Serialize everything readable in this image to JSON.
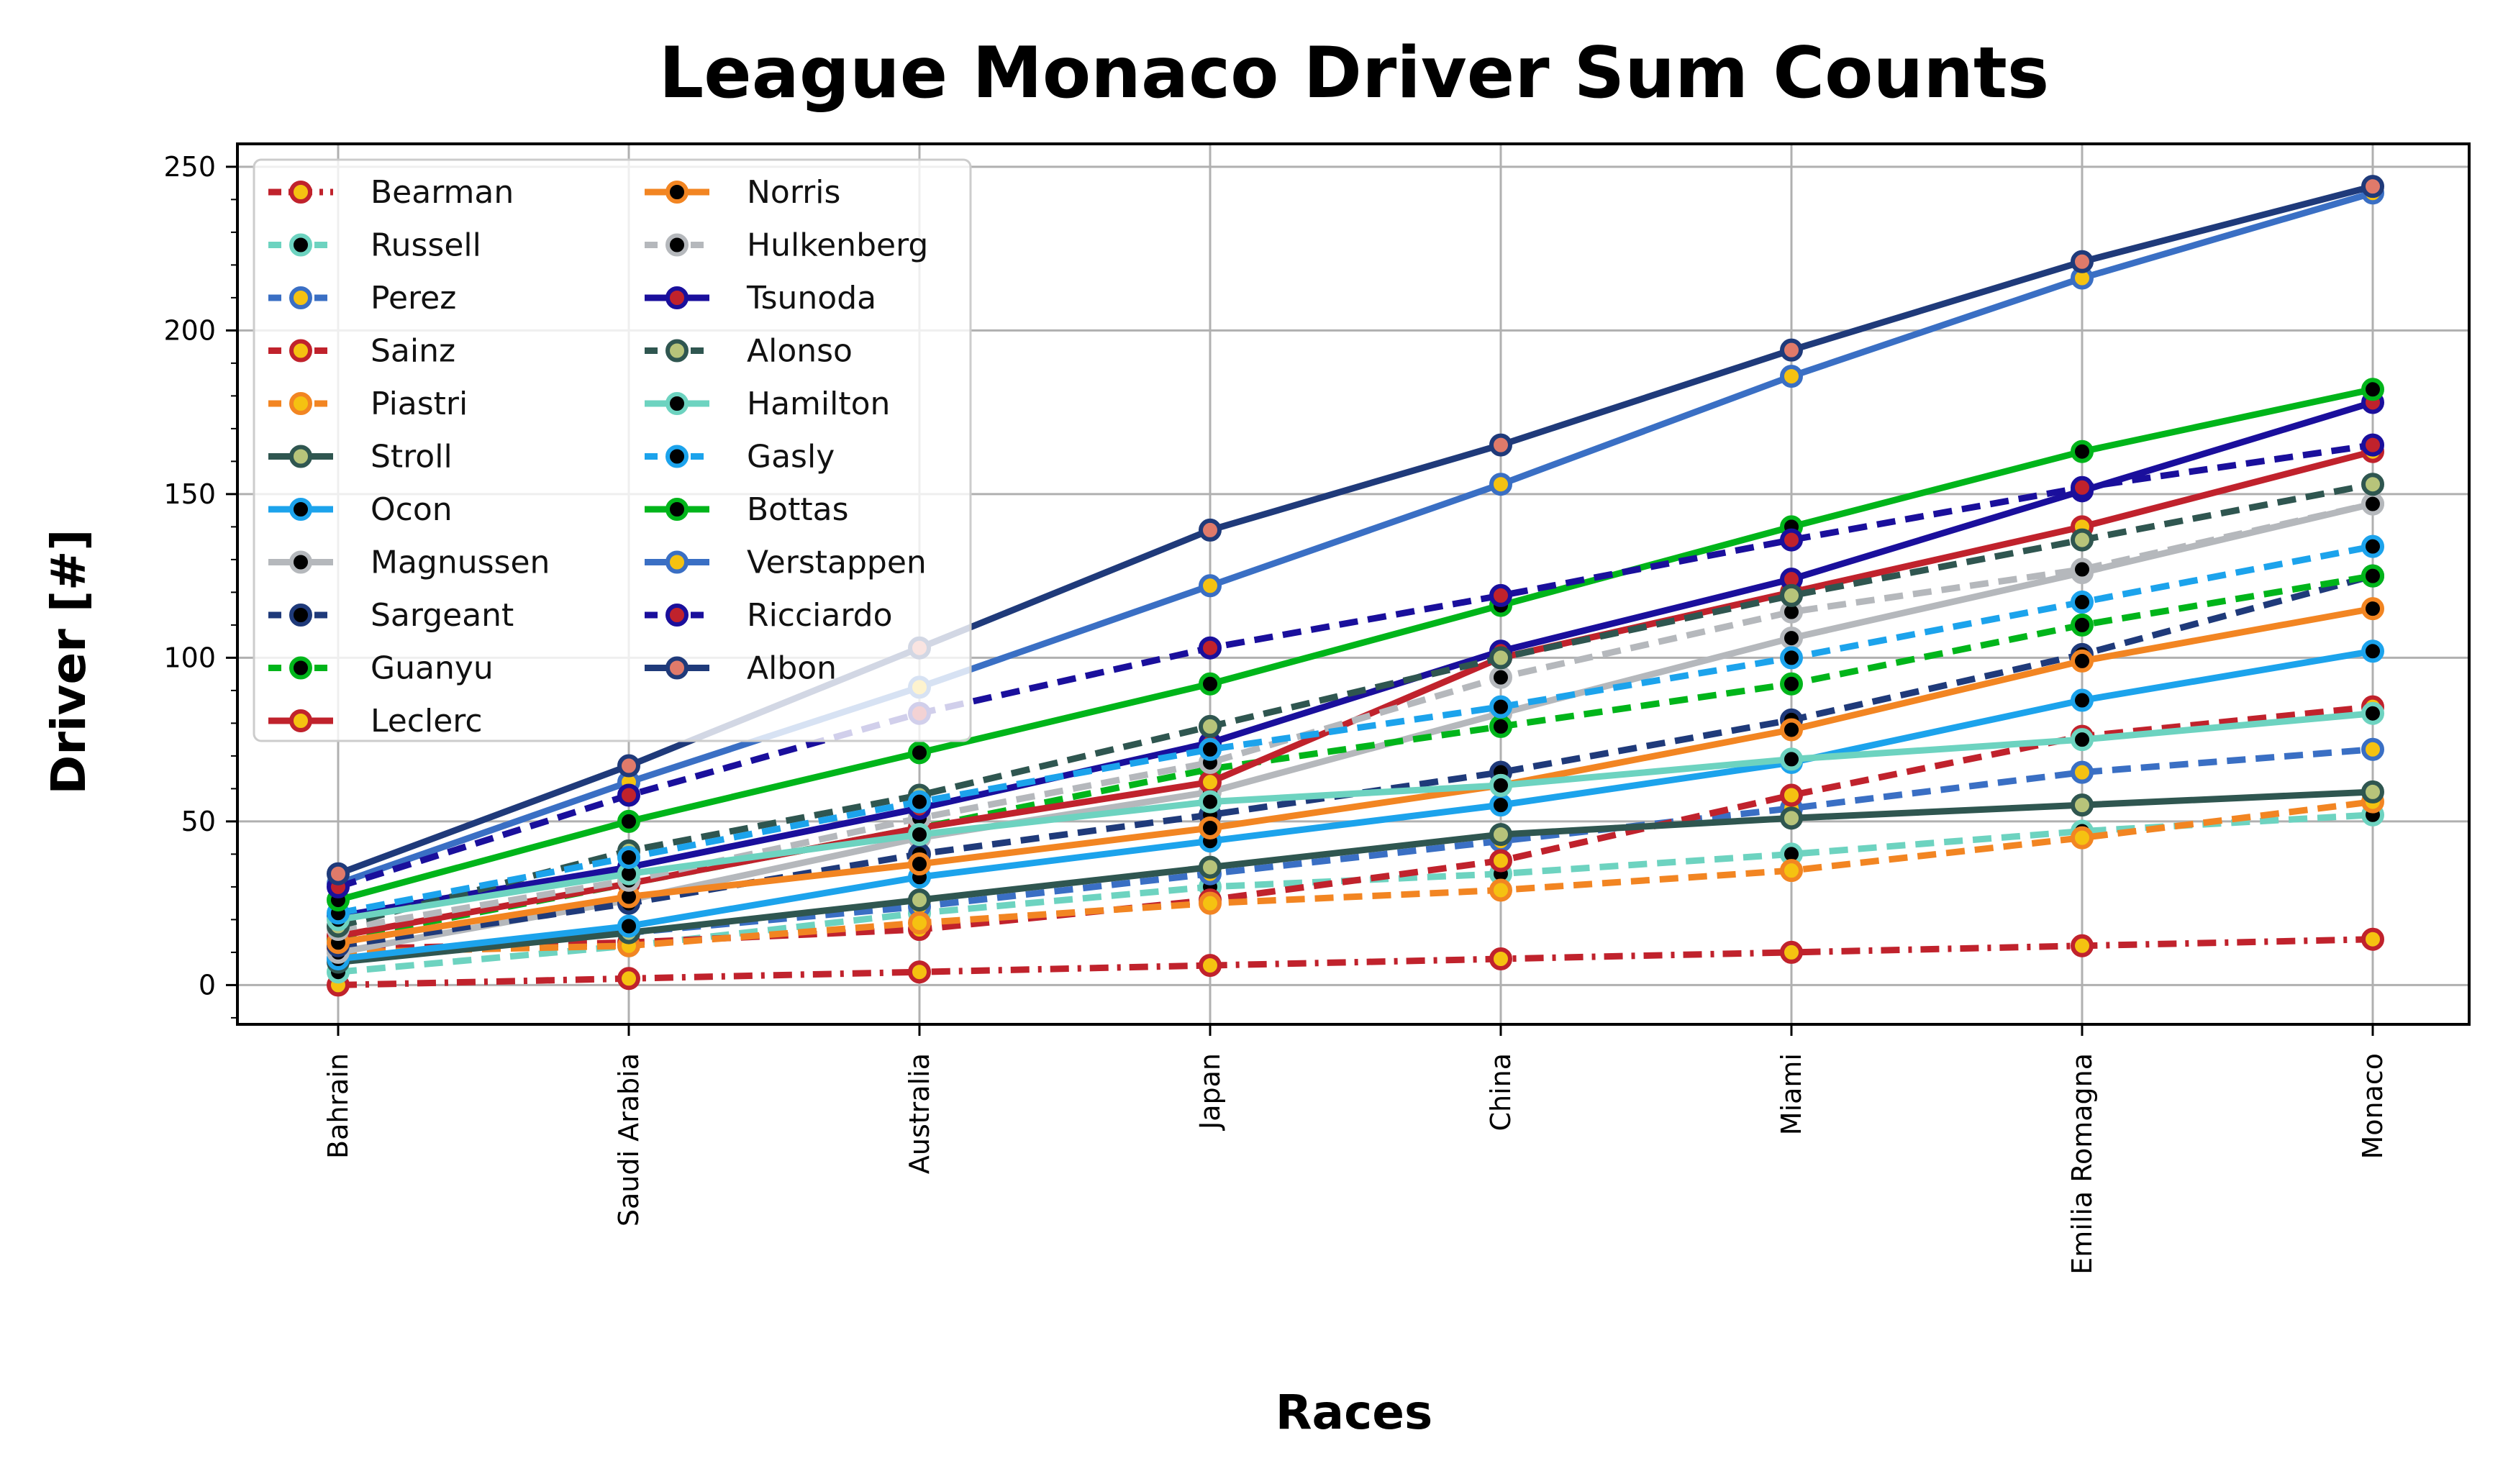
{
  "chart_data": {
    "type": "line",
    "title": "League Monaco Driver Sum Counts",
    "xlabel": "Races",
    "ylabel": "Driver [#]",
    "categories": [
      "Bahrain",
      "Saudi Arabia",
      "Australia",
      "Japan",
      "China",
      "Miami",
      "Emilia Romagna",
      "Monaco"
    ],
    "yticks": [
      0,
      50,
      100,
      150,
      200,
      250
    ],
    "ylim": [
      -12,
      257
    ],
    "grid": true,
    "legend_position": "top-left",
    "legend_columns": 2,
    "series": [
      {
        "name": "Bearman",
        "color": "#c0222c",
        "dash": "dashdot",
        "marker_fill": "#f5c211",
        "values": [
          0,
          2,
          4,
          6,
          8,
          10,
          12,
          14
        ]
      },
      {
        "name": "Russell",
        "color": "#6dd3c0",
        "dash": "dashed",
        "marker_fill": "#000000",
        "values": [
          4,
          12,
          22,
          30,
          34,
          40,
          47,
          52
        ]
      },
      {
        "name": "Perez",
        "color": "#3a6fc4",
        "dash": "dashed",
        "marker_fill": "#f5c211",
        "values": [
          8,
          16,
          24,
          34,
          44,
          54,
          65,
          72
        ]
      },
      {
        "name": "Sainz",
        "color": "#c0222c",
        "dash": "dashed",
        "marker_fill": "#f5c211",
        "values": [
          11,
          13,
          17,
          26,
          38,
          58,
          76,
          85
        ]
      },
      {
        "name": "Piastri",
        "color": "#f28522",
        "dash": "dashed",
        "marker_fill": "#f5c211",
        "values": [
          10,
          12,
          19,
          25,
          29,
          35,
          45,
          56
        ]
      },
      {
        "name": "Stroll",
        "color": "#2f5650",
        "dash": "solid",
        "marker_fill": "#b7c47a",
        "values": [
          7,
          16,
          26,
          36,
          46,
          51,
          55,
          59
        ]
      },
      {
        "name": "Ocon",
        "color": "#1ca3ec",
        "dash": "solid",
        "marker_fill": "#000000",
        "values": [
          8,
          18,
          33,
          44,
          55,
          68,
          87,
          102
        ]
      },
      {
        "name": "Magnussen",
        "color": "#b5b8bc",
        "dash": "solid",
        "marker_fill": "#000000",
        "values": [
          10,
          26,
          45,
          59,
          83,
          106,
          126,
          147
        ]
      },
      {
        "name": "Sargeant",
        "color": "#1f3a7a",
        "dash": "dashed",
        "marker_fill": "#000000",
        "values": [
          12,
          25,
          40,
          52,
          65,
          81,
          101,
          125
        ]
      },
      {
        "name": "Guanyu",
        "color": "#00b51a",
        "dash": "dashed",
        "marker_fill": "#000000",
        "values": [
          14,
          31,
          48,
          66,
          79,
          92,
          110,
          125
        ]
      },
      {
        "name": "Leclerc",
        "color": "#c0222c",
        "dash": "solid",
        "marker_fill": "#f5c211",
        "values": [
          15,
          31,
          48,
          62,
          100,
          120,
          140,
          163
        ]
      },
      {
        "name": "Norris",
        "color": "#f28522",
        "dash": "solid",
        "marker_fill": "#000000",
        "values": [
          13,
          27,
          37,
          48,
          61,
          78,
          99,
          115
        ]
      },
      {
        "name": "Hulkenberg",
        "color": "#b5b8bc",
        "dash": "dashed",
        "marker_fill": "#000000",
        "values": [
          17,
          32,
          51,
          68,
          94,
          114,
          127,
          147
        ]
      },
      {
        "name": "Tsunoda",
        "color": "#1a0f9c",
        "dash": "solid",
        "marker_fill": "#c0222c",
        "values": [
          21,
          36,
          54,
          74,
          102,
          124,
          151,
          178
        ]
      },
      {
        "name": "Alonso",
        "color": "#2f5650",
        "dash": "dashed",
        "marker_fill": "#b7c47a",
        "values": [
          18,
          41,
          58,
          79,
          100,
          119,
          136,
          153
        ]
      },
      {
        "name": "Hamilton",
        "color": "#6dd3c0",
        "dash": "solid",
        "marker_fill": "#000000",
        "values": [
          20,
          34,
          46,
          56,
          61,
          69,
          75,
          83
        ]
      },
      {
        "name": "Gasly",
        "color": "#1ca3ec",
        "dash": "dashed",
        "marker_fill": "#000000",
        "values": [
          22,
          39,
          56,
          72,
          85,
          100,
          117,
          134
        ]
      },
      {
        "name": "Bottas",
        "color": "#00b51a",
        "dash": "solid",
        "marker_fill": "#000000",
        "values": [
          26,
          50,
          71,
          92,
          116,
          140,
          163,
          182
        ]
      },
      {
        "name": "Verstappen",
        "color": "#3a6fc4",
        "dash": "solid",
        "marker_fill": "#f5c211",
        "values": [
          31,
          62,
          91,
          122,
          153,
          186,
          216,
          242
        ]
      },
      {
        "name": "Ricciardo",
        "color": "#1a0f9c",
        "dash": "dashed",
        "marker_fill": "#c0222c",
        "values": [
          30,
          58,
          83,
          103,
          119,
          136,
          152,
          165
        ]
      },
      {
        "name": "Albon",
        "color": "#1f3a7a",
        "dash": "solid",
        "marker_fill": "#e07a6a",
        "values": [
          34,
          67,
          103,
          139,
          165,
          194,
          221,
          244
        ]
      }
    ]
  }
}
